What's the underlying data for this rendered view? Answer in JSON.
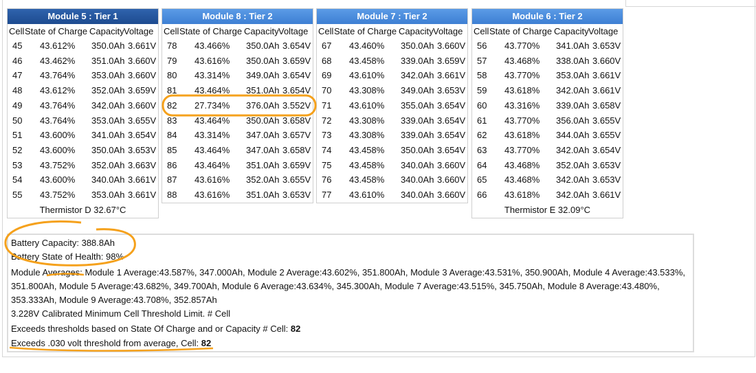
{
  "columns": [
    "Cell",
    "State of Charge",
    "Capacity",
    "Voltage"
  ],
  "modules": [
    {
      "title": "Module 5 : Tier 1",
      "rows": [
        [
          "45",
          "43.612%",
          "350.0Ah",
          "3.661V"
        ],
        [
          "46",
          "43.462%",
          "351.0Ah",
          "3.660V"
        ],
        [
          "47",
          "43.764%",
          "353.0Ah",
          "3.660V"
        ],
        [
          "48",
          "43.612%",
          "352.0Ah",
          "3.659V"
        ],
        [
          "49",
          "43.764%",
          "342.0Ah",
          "3.660V"
        ],
        [
          "50",
          "43.764%",
          "353.0Ah",
          "3.655V"
        ],
        [
          "51",
          "43.600%",
          "341.0Ah",
          "3.654V"
        ],
        [
          "52",
          "43.600%",
          "350.0Ah",
          "3.653V"
        ],
        [
          "53",
          "43.752%",
          "352.0Ah",
          "3.663V"
        ],
        [
          "54",
          "43.600%",
          "340.0Ah",
          "3.661V"
        ],
        [
          "55",
          "43.752%",
          "353.0Ah",
          "3.661V"
        ]
      ],
      "thermistor": "Thermistor D 32.67°C"
    },
    {
      "title": "Module 8 : Tier 2",
      "rows": [
        [
          "78",
          "43.466%",
          "350.0Ah",
          "3.654V"
        ],
        [
          "79",
          "43.616%",
          "350.0Ah",
          "3.659V"
        ],
        [
          "80",
          "43.314%",
          "349.0Ah",
          "3.654V"
        ],
        [
          "81",
          "43.464%",
          "351.0Ah",
          "3.654V"
        ],
        [
          "82",
          "27.734%",
          "376.0Ah",
          "3.552V"
        ],
        [
          "83",
          "43.464%",
          "350.0Ah",
          "3.658V"
        ],
        [
          "84",
          "43.314%",
          "347.0Ah",
          "3.657V"
        ],
        [
          "85",
          "43.464%",
          "347.0Ah",
          "3.658V"
        ],
        [
          "86",
          "43.464%",
          "351.0Ah",
          "3.659V"
        ],
        [
          "87",
          "43.616%",
          "352.0Ah",
          "3.655V"
        ],
        [
          "88",
          "43.616%",
          "351.0Ah",
          "3.653V"
        ]
      ]
    },
    {
      "title": "Module 7 : Tier 2",
      "rows": [
        [
          "67",
          "43.460%",
          "350.0Ah",
          "3.660V"
        ],
        [
          "68",
          "43.458%",
          "339.0Ah",
          "3.659V"
        ],
        [
          "69",
          "43.610%",
          "342.0Ah",
          "3.661V"
        ],
        [
          "70",
          "43.308%",
          "349.0Ah",
          "3.653V"
        ],
        [
          "71",
          "43.610%",
          "355.0Ah",
          "3.654V"
        ],
        [
          "72",
          "43.308%",
          "339.0Ah",
          "3.654V"
        ],
        [
          "73",
          "43.308%",
          "339.0Ah",
          "3.654V"
        ],
        [
          "74",
          "43.458%",
          "350.0Ah",
          "3.654V"
        ],
        [
          "75",
          "43.458%",
          "340.0Ah",
          "3.660V"
        ],
        [
          "76",
          "43.458%",
          "340.0Ah",
          "3.660V"
        ],
        [
          "77",
          "43.610%",
          "340.0Ah",
          "3.660V"
        ]
      ]
    },
    {
      "title": "Module 6 : Tier 2",
      "rows": [
        [
          "56",
          "43.770%",
          "341.0Ah",
          "3.653V"
        ],
        [
          "57",
          "43.468%",
          "338.0Ah",
          "3.660V"
        ],
        [
          "58",
          "43.770%",
          "353.0Ah",
          "3.661V"
        ],
        [
          "59",
          "43.618%",
          "342.0Ah",
          "3.661V"
        ],
        [
          "60",
          "43.316%",
          "339.0Ah",
          "3.658V"
        ],
        [
          "61",
          "43.770%",
          "356.0Ah",
          "3.655V"
        ],
        [
          "62",
          "43.618%",
          "344.0Ah",
          "3.655V"
        ],
        [
          "63",
          "43.770%",
          "342.0Ah",
          "3.654V"
        ],
        [
          "64",
          "43.468%",
          "352.0Ah",
          "3.653V"
        ],
        [
          "65",
          "43.468%",
          "342.0Ah",
          "3.653V"
        ],
        [
          "66",
          "43.618%",
          "342.0Ah",
          "3.661V"
        ]
      ],
      "thermistor": "Thermistor E 32.09°C"
    }
  ],
  "summary": {
    "battery_capacity": "Battery Capacity: 388.8Ah",
    "state_of_health": "Battery State of Health: 98%",
    "module_averages": "Module Averages: Module 1 Average:43.587%, 347.000Ah, Module 2 Average:43.602%, 351.800Ah, Module 3 Average:43.531%, 350.900Ah, Module 4 Average:43.533%, 351.800Ah, Module 5 Average:43.682%, 349.700Ah, Module 6 Average:43.634%, 345.300Ah, Module 7 Average:43.515%, 345.750Ah, Module 8 Average:43.480%, 353.333Ah, Module 9 Average:43.708%, 352.857Ah",
    "threshold_limit": "3.228V Calibrated Minimum Cell Threshold Limit. # Cell",
    "soc_exceeds": {
      "text": "Exceeds thresholds based on State Of Charge and or Capacity # Cell: ",
      "cell": "82"
    },
    "volt_exceeds": {
      "text": "Exceeds .030 volt threshold from average, Cell: ",
      "cell": "82"
    }
  }
}
